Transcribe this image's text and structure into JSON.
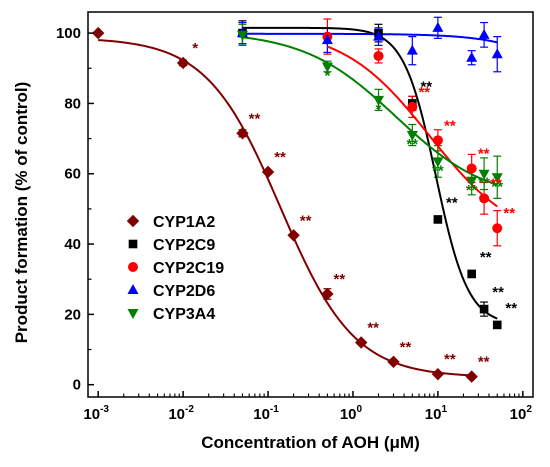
{
  "chart_data": {
    "type": "scatter",
    "xlabel": "Concentration of AOH (μM)",
    "ylabel": "Product formation (% of control)",
    "xscale": "log",
    "xlim": [
      0.001,
      100
    ],
    "ylim": [
      0,
      105
    ],
    "x_ticks": [
      {
        "value": 0.001,
        "base": "10",
        "exp": "-3"
      },
      {
        "value": 0.01,
        "base": "10",
        "exp": "-2"
      },
      {
        "value": 0.1,
        "base": "10",
        "exp": "-1"
      },
      {
        "value": 1,
        "base": "10",
        "exp": "0"
      },
      {
        "value": 10,
        "base": "10",
        "exp": "1"
      },
      {
        "value": 100,
        "base": "10",
        "exp": "2"
      }
    ],
    "y_ticks": [
      "0",
      "20",
      "40",
      "60",
      "80",
      "100"
    ],
    "legend_position": "center-left",
    "series": [
      {
        "name": "CYP1A2",
        "color": "#800000",
        "marker": "diamond",
        "points": [
          {
            "x": 0.001,
            "y": 100,
            "err": 0,
            "sig": ""
          },
          {
            "x": 0.01,
            "y": 91.5,
            "err": 0.8,
            "sig": "*"
          },
          {
            "x": 0.05,
            "y": 71.5,
            "err": 1,
            "sig": "**"
          },
          {
            "x": 0.1,
            "y": 60.5,
            "err": 0.5,
            "sig": "**"
          },
          {
            "x": 0.2,
            "y": 42.5,
            "err": 0.5,
            "sig": "**"
          },
          {
            "x": 0.5,
            "y": 25.8,
            "err": 1.5,
            "sig": "**"
          },
          {
            "x": 1.25,
            "y": 12,
            "err": 0.5,
            "sig": "**"
          },
          {
            "x": 3,
            "y": 6.5,
            "err": 0.5,
            "sig": "**"
          },
          {
            "x": 10,
            "y": 3,
            "err": 0.4,
            "sig": "**"
          },
          {
            "x": 25,
            "y": 2.3,
            "err": 0.3,
            "sig": "**"
          }
        ],
        "fit": {
          "top": 98.7,
          "bottom": 2.1,
          "ic50": 0.14,
          "hill": 1.0
        }
      },
      {
        "name": "CYP2C9",
        "color": "#000000",
        "marker": "square",
        "points": [
          {
            "x": 0.05,
            "y": 100,
            "err": 3.5,
            "sig": ""
          },
          {
            "x": 2,
            "y": 100,
            "err": 2.5,
            "sig": ""
          },
          {
            "x": 5,
            "y": 80,
            "err": 2,
            "sig": "**"
          },
          {
            "x": 10,
            "y": 47,
            "err": 0.8,
            "sig": "**"
          },
          {
            "x": 25,
            "y": 31.5,
            "err": 1,
            "sig": "**"
          },
          {
            "x": 35,
            "y": 21.5,
            "err": 2,
            "sig": "**"
          },
          {
            "x": 50,
            "y": 17,
            "err": 0.5,
            "sig": "**"
          }
        ],
        "fit": {
          "top": 101.5,
          "bottom": 17,
          "ic50": 9.5,
          "hill": 2.3
        }
      },
      {
        "name": "CYP2C19",
        "color": "#ff0000",
        "marker": "circle",
        "points": [
          {
            "x": 0.5,
            "y": 99,
            "err": 5,
            "sig": ""
          },
          {
            "x": 2,
            "y": 93.5,
            "err": 2,
            "sig": ""
          },
          {
            "x": 5,
            "y": 79,
            "err": 3,
            "sig": "**"
          },
          {
            "x": 10,
            "y": 69.5,
            "err": 3,
            "sig": "**"
          },
          {
            "x": 25,
            "y": 61.5,
            "err": 4,
            "sig": "**"
          },
          {
            "x": 35,
            "y": 53,
            "err": 4.5,
            "sig": "**"
          },
          {
            "x": 50,
            "y": 44.5,
            "err": 5,
            "sig": "**"
          }
        ],
        "fit": {
          "top": 101.5,
          "bottom": 40,
          "ic50": 8,
          "hill": 0.85
        }
      },
      {
        "name": "CYP2D6",
        "color": "#0000ff",
        "marker": "triangle-up",
        "points": [
          {
            "x": 0.05,
            "y": 100,
            "err": 3,
            "sig": ""
          },
          {
            "x": 0.5,
            "y": 98,
            "err": 3.5,
            "sig": ""
          },
          {
            "x": 2,
            "y": 99,
            "err": 2.5,
            "sig": ""
          },
          {
            "x": 5,
            "y": 95,
            "err": 4,
            "sig": ""
          },
          {
            "x": 10,
            "y": 101.5,
            "err": 3,
            "sig": ""
          },
          {
            "x": 25,
            "y": 93,
            "err": 2,
            "sig": ""
          },
          {
            "x": 35,
            "y": 99.5,
            "err": 3.5,
            "sig": ""
          },
          {
            "x": 50,
            "y": 94,
            "err": 5,
            "sig": ""
          }
        ],
        "fit": {
          "top": 99.8,
          "bottom": 0,
          "ic50": 2000,
          "hill": 1
        }
      },
      {
        "name": "CYP3A4",
        "color": "#008000",
        "marker": "triangle-down",
        "points": [
          {
            "x": 0.05,
            "y": 99.5,
            "err": 3,
            "sig": ""
          },
          {
            "x": 0.5,
            "y": 90.5,
            "err": 1.5,
            "sig": "*"
          },
          {
            "x": 2,
            "y": 81,
            "err": 3,
            "sig": "*"
          },
          {
            "x": 5,
            "y": 71,
            "err": 3,
            "sig": "**"
          },
          {
            "x": 10,
            "y": 63.5,
            "err": 4.5,
            "sig": "**"
          },
          {
            "x": 25,
            "y": 58,
            "err": 4,
            "sig": "**"
          },
          {
            "x": 35,
            "y": 60,
            "err": 4.5,
            "sig": "**"
          },
          {
            "x": 50,
            "y": 59,
            "err": 6,
            "sig": "**"
          }
        ],
        "fit": {
          "top": 100.5,
          "bottom": 52,
          "ic50": 3.2,
          "hill": 0.8
        }
      }
    ]
  }
}
